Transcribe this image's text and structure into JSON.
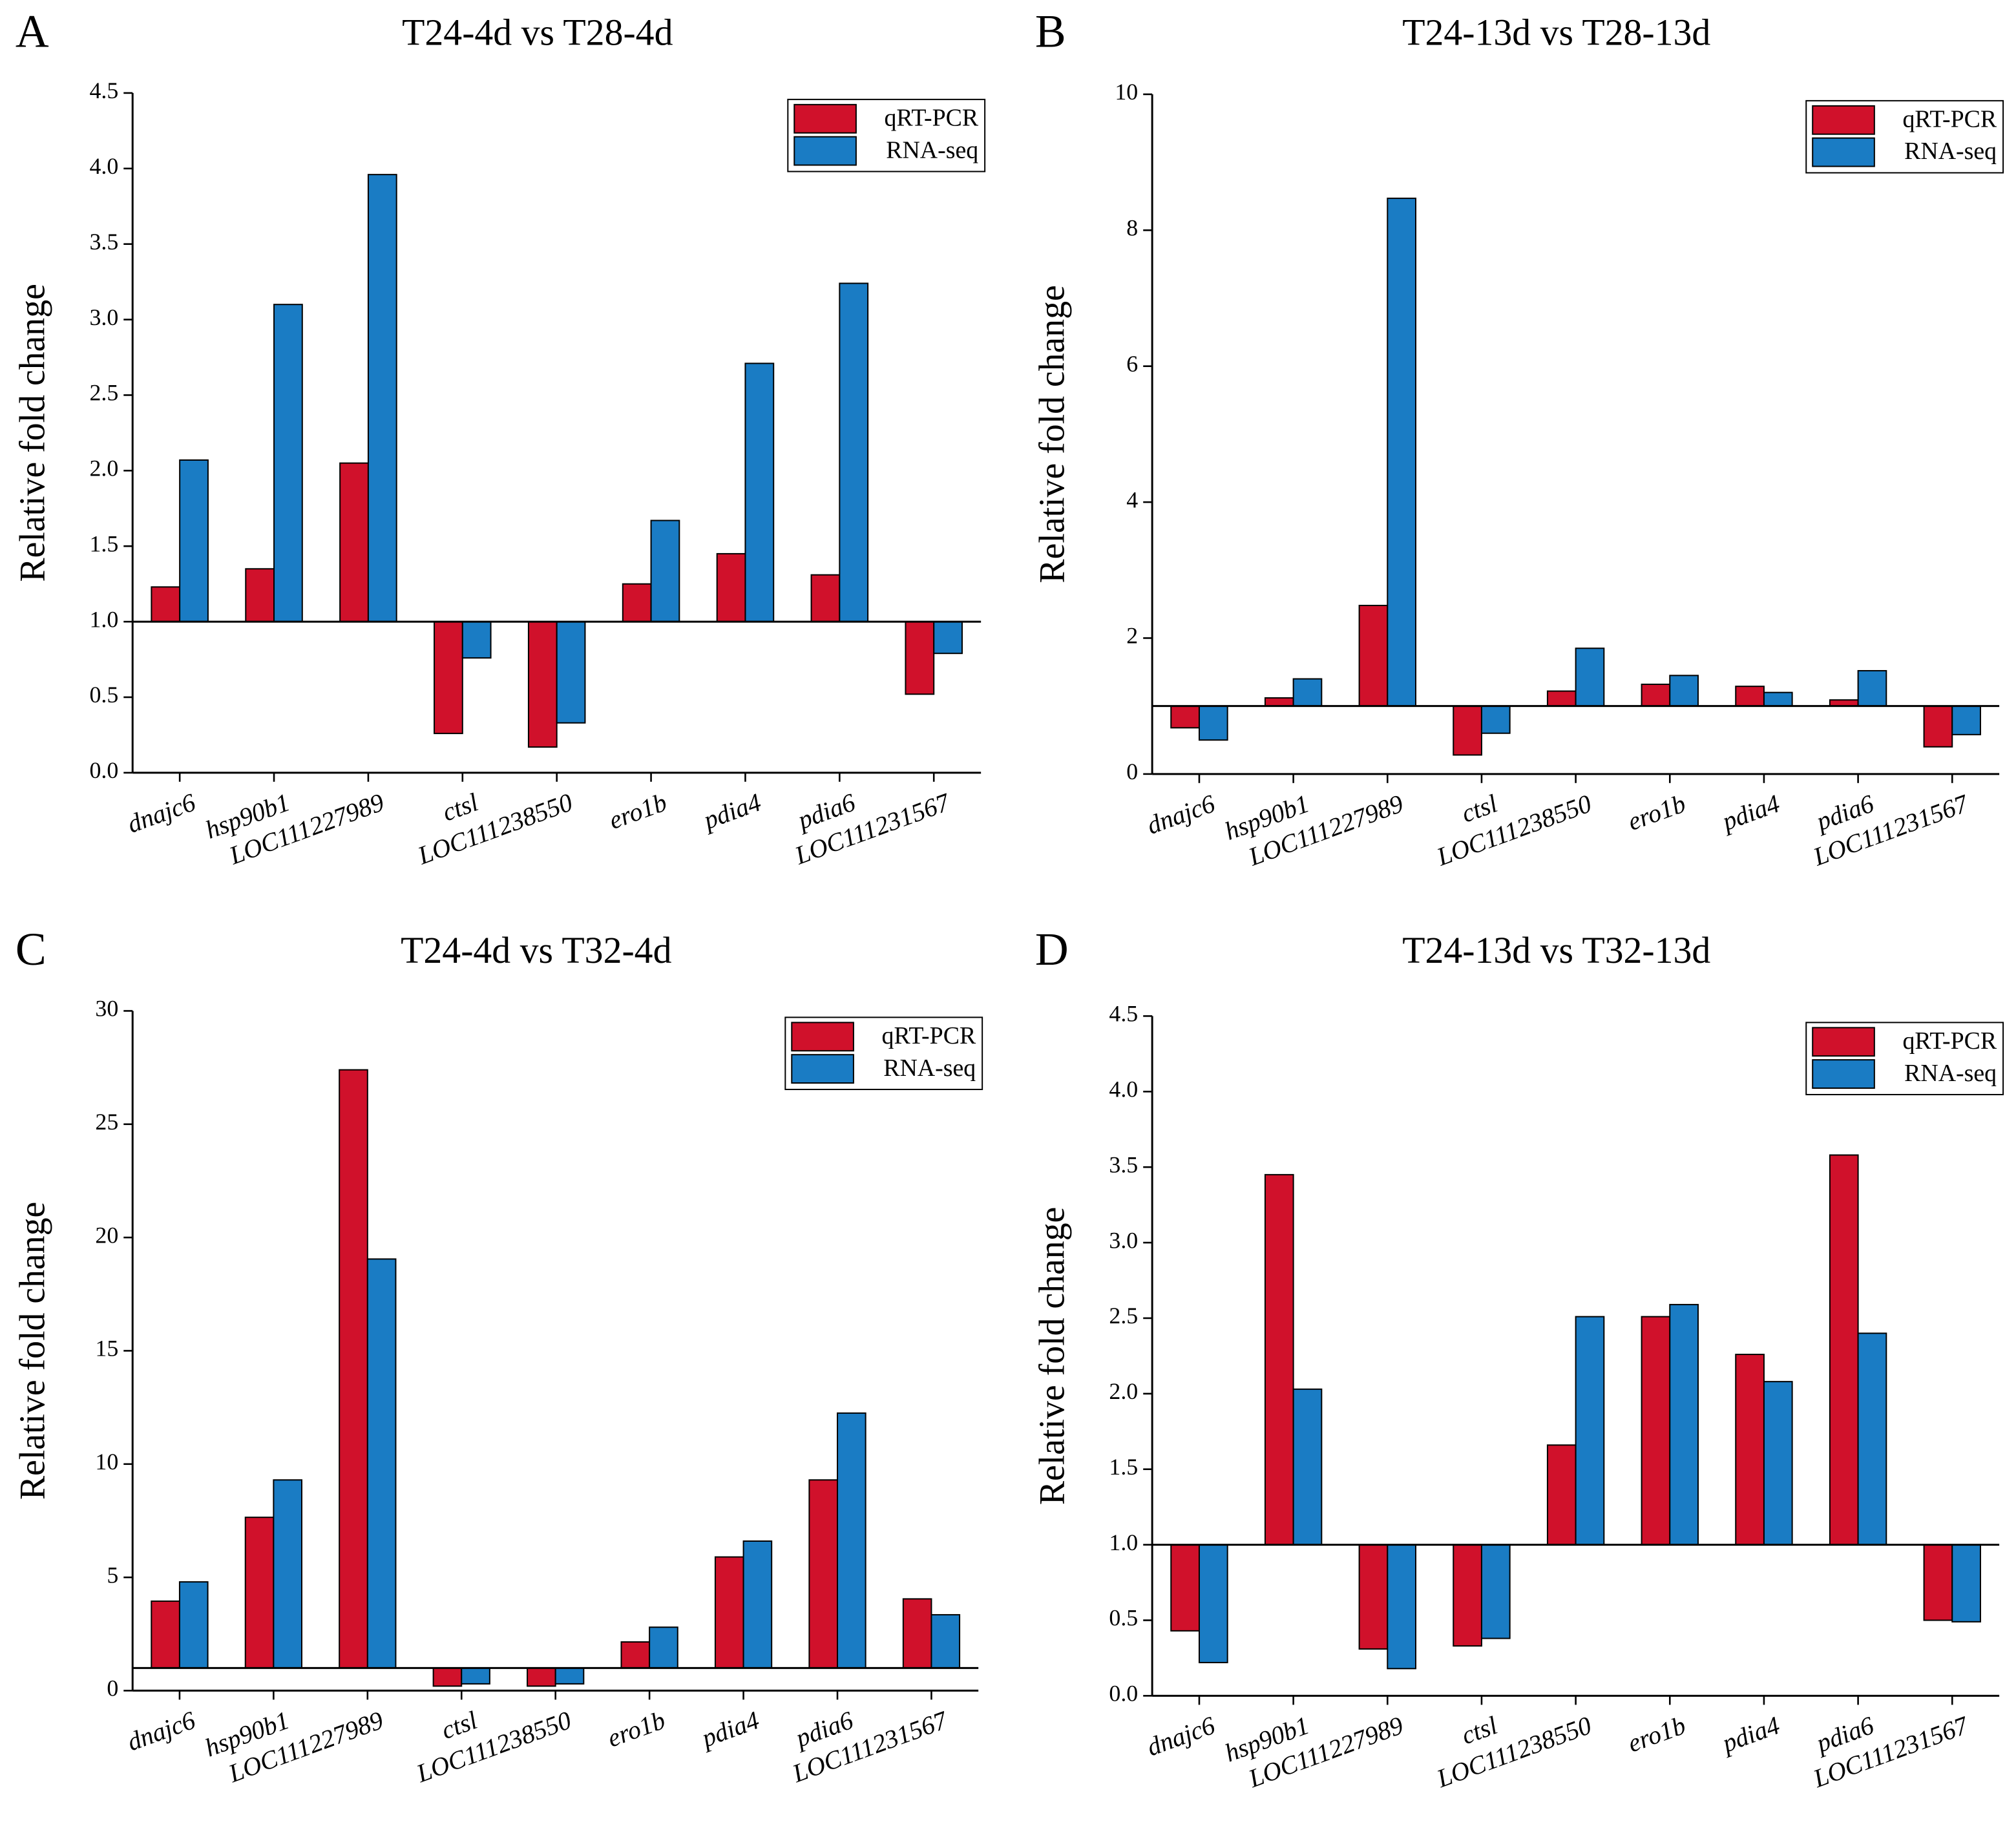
{
  "chart_data": [
    {
      "type": "bar",
      "label": "A",
      "title": "T24-4d vs T28-4d",
      "y_label": "Relative fold change",
      "categories": [
        "dnajc6",
        "hsp90b1",
        "LOC111227989",
        "ctsl",
        "LOC111238550",
        "ero1b",
        "pdia4",
        "pdia6",
        "LOC111231567"
      ],
      "series": [
        {
          "name": "qRT-PCR",
          "color": "#d0112b",
          "values": [
            1.23,
            1.35,
            2.05,
            0.26,
            0.17,
            1.25,
            1.45,
            1.31,
            0.52
          ]
        },
        {
          "name": "RNA-seq",
          "color": "#1a7cc4",
          "values": [
            2.07,
            3.1,
            3.96,
            0.76,
            0.33,
            1.67,
            2.71,
            3.24,
            0.79
          ]
        }
      ],
      "baseline": 1,
      "ylim": [
        0,
        4.5
      ],
      "yticks": [
        {
          "value": 0,
          "label": "0.0"
        },
        0.5,
        {
          "value": 1,
          "label": "1.0"
        },
        1.5,
        {
          "value": 2,
          "label": "2.0"
        },
        2.5,
        {
          "value": 3,
          "label": "3.0"
        },
        3.5,
        {
          "value": 4,
          "label": "4.0"
        },
        4.5
      ],
      "legend": "upper right"
    },
    {
      "type": "bar",
      "label": "B",
      "title": "T24-13d vs T28-13d",
      "y_label": "Relative fold change",
      "categories": [
        "dnajc6",
        "hsp90b1",
        "LOC111227989",
        "ctsl",
        "LOC111238550",
        "ero1b",
        "pdia4",
        "pdia6",
        "LOC111231567"
      ],
      "series": [
        {
          "name": "qRT-PCR",
          "color": "#d0112b",
          "values": [
            0.68,
            1.12,
            2.48,
            0.28,
            1.22,
            1.32,
            1.29,
            1.09,
            0.4
          ]
        },
        {
          "name": "RNA-seq",
          "color": "#1a7cc4",
          "values": [
            0.5,
            1.4,
            8.47,
            0.6,
            1.85,
            1.45,
            1.2,
            1.52,
            0.58
          ]
        }
      ],
      "baseline": 1,
      "ylim": [
        0,
        10
      ],
      "yticks": [
        0,
        2,
        4,
        6,
        8,
        10
      ],
      "legend": "upper right"
    },
    {
      "type": "bar",
      "label": "C",
      "title": "T24-4d vs T32-4d",
      "y_label": "Relative fold change",
      "categories": [
        "dnajc6",
        "hsp90b1",
        "LOC111227989",
        "ctsl",
        "LOC111238550",
        "ero1b",
        "pdia4",
        "pdia6",
        "LOC111231567"
      ],
      "series": [
        {
          "name": "qRT-PCR",
          "color": "#d0112b",
          "values": [
            3.95,
            7.65,
            27.4,
            0.2,
            0.2,
            2.15,
            5.9,
            9.3,
            4.05
          ]
        },
        {
          "name": "RNA-seq",
          "color": "#1a7cc4",
          "values": [
            4.8,
            9.3,
            19.05,
            0.3,
            0.3,
            2.8,
            6.6,
            12.25,
            3.35
          ]
        }
      ],
      "baseline": 1,
      "ylim": [
        0,
        30
      ],
      "yticks": [
        0,
        5,
        10,
        15,
        20,
        25,
        30
      ],
      "legend": "upper right"
    },
    {
      "type": "bar",
      "label": "D",
      "title": "T24-13d vs T32-13d",
      "y_label": "Relative fold change",
      "categories": [
        "dnajc6",
        "hsp90b1",
        "LOC111227989",
        "ctsl",
        "LOC111238550",
        "ero1b",
        "pdia4",
        "pdia6",
        "LOC111231567"
      ],
      "series": [
        {
          "name": "qRT-PCR",
          "color": "#d0112b",
          "values": [
            0.43,
            3.45,
            0.31,
            0.33,
            1.66,
            2.51,
            2.26,
            3.58,
            0.5
          ]
        },
        {
          "name": "RNA-seq",
          "color": "#1a7cc4",
          "values": [
            0.22,
            2.03,
            0.18,
            0.38,
            2.51,
            2.59,
            2.08,
            2.4,
            0.49
          ]
        }
      ],
      "baseline": 1,
      "ylim": [
        0,
        4.5
      ],
      "yticks": [
        {
          "value": 0,
          "label": "0.0"
        },
        0.5,
        {
          "value": 1,
          "label": "1.0"
        },
        1.5,
        {
          "value": 2,
          "label": "2.0"
        },
        2.5,
        {
          "value": 3,
          "label": "3.0"
        },
        3.5,
        {
          "value": 4,
          "label": "4.0"
        },
        4.5
      ],
      "legend": "upper right"
    }
  ]
}
